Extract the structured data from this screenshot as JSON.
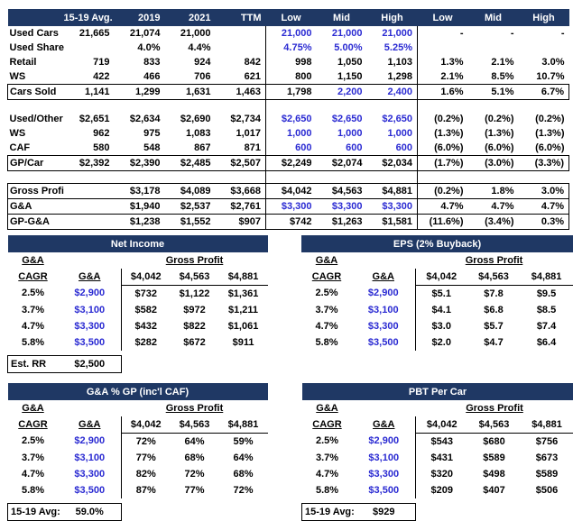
{
  "colors": {
    "navy": "#1F3864",
    "blue": "#2A2AD2",
    "border": "#000000"
  },
  "top_table": {
    "headers": [
      "",
      "15-19 Avg.",
      "2019",
      "2021",
      "TTM",
      "Low",
      "Mid",
      "High",
      "Low",
      "Mid",
      "High"
    ],
    "rows": [
      {
        "label": "Used Cars",
        "cells": [
          "21,665",
          "21,074",
          "21,000",
          "",
          "21,000",
          "21,000",
          "21,000",
          "-",
          "-",
          "-"
        ],
        "blue": [
          4,
          5,
          6
        ],
        "style": ""
      },
      {
        "label": "Used Share",
        "cells": [
          "",
          "4.0%",
          "4.4%",
          "",
          "4.75%",
          "5.00%",
          "5.25%",
          "",
          "",
          ""
        ],
        "blue": [
          4,
          5,
          6
        ],
        "style": ""
      },
      {
        "label": "Retail",
        "cells": [
          "719",
          "833",
          "924",
          "842",
          "998",
          "1,050",
          "1,103",
          "1.3%",
          "2.1%",
          "3.0%"
        ],
        "blue": [],
        "style": ""
      },
      {
        "label": "WS",
        "cells": [
          "422",
          "466",
          "706",
          "621",
          "800",
          "1,150",
          "1,298",
          "2.1%",
          "8.5%",
          "10.7%"
        ],
        "blue": [],
        "style": ""
      },
      {
        "label": "Cars Sold",
        "cells": [
          "1,141",
          "1,299",
          "1,631",
          "1,463",
          "1,798",
          "2,200",
          "2,400",
          "1.6%",
          "5.1%",
          "6.7%"
        ],
        "blue": [
          5,
          6
        ],
        "style": "box"
      },
      {
        "gap": true
      },
      {
        "label": "Used/Other",
        "cells": [
          "$2,651",
          "$2,634",
          "$2,690",
          "$2,734",
          "$2,650",
          "$2,650",
          "$2,650",
          "(0.2%)",
          "(0.2%)",
          "(0.2%)"
        ],
        "blue": [
          4,
          5,
          6
        ],
        "style": ""
      },
      {
        "label": "WS",
        "cells": [
          "962",
          "975",
          "1,083",
          "1,017",
          "1,000",
          "1,000",
          "1,000",
          "(1.3%)",
          "(1.3%)",
          "(1.3%)"
        ],
        "blue": [
          4,
          5,
          6
        ],
        "style": ""
      },
      {
        "label": "CAF",
        "cells": [
          "580",
          "548",
          "867",
          "871",
          "600",
          "600",
          "600",
          "(6.0%)",
          "(6.0%)",
          "(6.0%)"
        ],
        "blue": [
          4,
          5,
          6
        ],
        "style": ""
      },
      {
        "label": "GP/Car",
        "cells": [
          "$2,392",
          "$2,390",
          "$2,485",
          "$2,507",
          "$2,249",
          "$2,074",
          "$2,034",
          "(1.7%)",
          "(3.0%)",
          "(3.3%)"
        ],
        "blue": [],
        "style": "box"
      },
      {
        "gap": true
      },
      {
        "label": "Gross Profit",
        "cells": [
          "",
          "$3,178",
          "$4,089",
          "$3,668",
          "$4,042",
          "$4,563",
          "$4,881",
          "(0.2%)",
          "1.8%",
          "3.0%"
        ],
        "blue": [],
        "style": "box"
      },
      {
        "label": "G&A",
        "cells": [
          "",
          "$1,940",
          "$2,537",
          "$2,761",
          "$3,300",
          "$3,300",
          "$3,300",
          "4.7%",
          "4.7%",
          "4.7%"
        ],
        "blue": [
          4,
          5,
          6
        ],
        "style": "sides"
      },
      {
        "label": "GP-G&A",
        "cells": [
          "",
          "$1,238",
          "$1,552",
          "$907",
          "$742",
          "$1,263",
          "$1,581",
          "(11.6%)",
          "(3.4%)",
          "0.3%"
        ],
        "blue": [],
        "style": "box"
      }
    ]
  },
  "quadrant_headers": {
    "col1_top": "G&A",
    "col1_bot": "CAGR",
    "col2": "G&A",
    "gp": "Gross Profit"
  },
  "quadrants": [
    {
      "title": "Net Income",
      "gp_values": [
        "$4,042",
        "$4,563",
        "$4,881"
      ],
      "rows": [
        [
          "2.5%",
          "$2,900",
          "$732",
          "$1,122",
          "$1,361"
        ],
        [
          "3.7%",
          "$3,100",
          "$582",
          "$972",
          "$1,211"
        ],
        [
          "4.7%",
          "$3,300",
          "$432",
          "$822",
          "$1,061"
        ],
        [
          "5.8%",
          "$3,500",
          "$282",
          "$672",
          "$911"
        ]
      ],
      "footer": {
        "label": "Est. RR",
        "value": "$2,500"
      }
    },
    {
      "title": "EPS (2% Buyback)",
      "gp_values": [
        "$4,042",
        "$4,563",
        "$4,881"
      ],
      "rows": [
        [
          "2.5%",
          "$2,900",
          "$5.1",
          "$7.8",
          "$9.5"
        ],
        [
          "3.7%",
          "$3,100",
          "$4.1",
          "$6.8",
          "$8.5"
        ],
        [
          "4.7%",
          "$3,300",
          "$3.0",
          "$5.7",
          "$7.4"
        ],
        [
          "5.8%",
          "$3,500",
          "$2.0",
          "$4.7",
          "$6.4"
        ]
      ],
      "footer": null
    },
    {
      "title": "G&A % GP (inc'l CAF)",
      "gp_values": [
        "$4,042",
        "$4,563",
        "$4,881"
      ],
      "rows": [
        [
          "2.5%",
          "$2,900",
          "72%",
          "64%",
          "59%"
        ],
        [
          "3.7%",
          "$3,100",
          "77%",
          "68%",
          "64%"
        ],
        [
          "4.7%",
          "$3,300",
          "82%",
          "72%",
          "68%"
        ],
        [
          "5.8%",
          "$3,500",
          "87%",
          "77%",
          "72%"
        ]
      ],
      "footer": {
        "label": "15-19 Avg:",
        "value": "59.0%"
      }
    },
    {
      "title": "PBT Per Car",
      "gp_values": [
        "$4,042",
        "$4,563",
        "$4,881"
      ],
      "rows": [
        [
          "2.5%",
          "$2,900",
          "$543",
          "$680",
          "$756"
        ],
        [
          "3.7%",
          "$3,100",
          "$431",
          "$589",
          "$673"
        ],
        [
          "4.7%",
          "$3,300",
          "$320",
          "$498",
          "$589"
        ],
        [
          "5.8%",
          "$3,500",
          "$209",
          "$407",
          "$506"
        ]
      ],
      "footer": {
        "label": "15-19 Avg:",
        "value": "$929"
      }
    }
  ]
}
